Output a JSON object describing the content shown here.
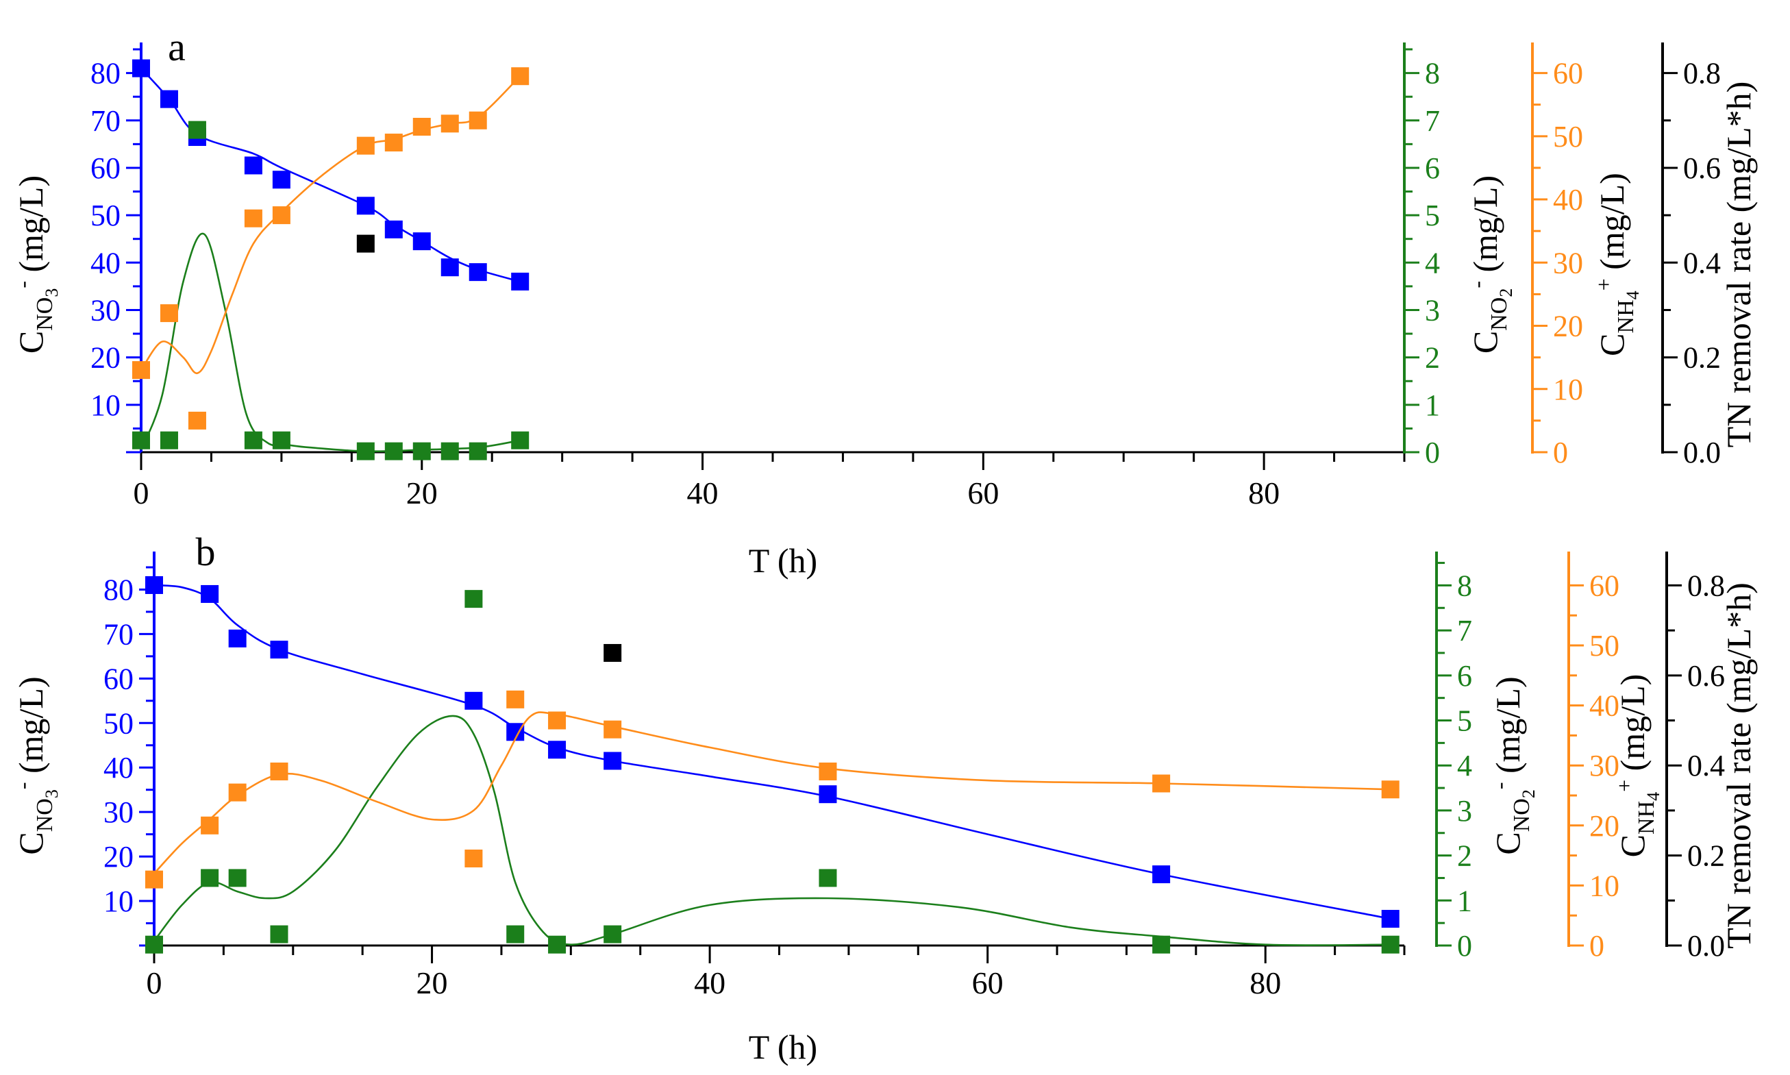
{
  "figure": {
    "colors": {
      "nitrate": "#0000FF",
      "nitrite": "#1B7F1B",
      "ammonium": "#FF8C1A",
      "tn_rate": "#000000"
    }
  },
  "chart_data": [
    {
      "type": "scatter",
      "panel_label": "a",
      "xlabel": "T (h)",
      "xlim": [
        0,
        90
      ],
      "x_ticks": [
        "0",
        "20",
        "40",
        "60",
        "80"
      ],
      "axes": {
        "nitrate": {
          "label": "C",
          "sub": "NO",
          "sub2": "3",
          "sup": "-",
          "unit": " (mg/L)",
          "ylim": [
            0,
            85
          ],
          "ticks": [
            "10",
            "20",
            "30",
            "40",
            "50",
            "60",
            "70",
            "80"
          ]
        },
        "nitrite": {
          "label": "C",
          "sub": "NO",
          "sub2": "2",
          "sup": "-",
          "unit": " (mg/L)",
          "ylim": [
            0,
            8.5
          ],
          "ticks": [
            "0",
            "1",
            "2",
            "3",
            "4",
            "5",
            "6",
            "7",
            "8"
          ]
        },
        "ammonium": {
          "label": "C",
          "sub": "NH",
          "sub2": "4",
          "sup": "+",
          "unit": " (mg/L)",
          "ylim": [
            0,
            63.75
          ],
          "ticks": [
            "0",
            "10",
            "20",
            "30",
            "40",
            "50",
            "60"
          ]
        },
        "tn_rate": {
          "label": "TN removal rate (mg/L*h)",
          "ylim": [
            0,
            0.85
          ],
          "ticks": [
            "0.0",
            "0.2",
            "0.4",
            "0.6",
            "0.8"
          ]
        }
      },
      "series": [
        {
          "name": "NO3-",
          "axis": "nitrate",
          "x": [
            0,
            2,
            4,
            8,
            10,
            16,
            18,
            20,
            22,
            24,
            27
          ],
          "y": [
            81,
            74.5,
            66.5,
            60.5,
            57.5,
            52,
            47,
            44.5,
            39,
            38,
            36
          ],
          "curve_x": [
            0,
            2,
            4,
            8,
            10,
            16,
            18,
            20,
            22,
            24,
            27
          ],
          "curve_y": [
            81,
            74.5,
            67,
            63,
            60,
            52,
            48,
            44.5,
            41,
            38.5,
            36
          ]
        },
        {
          "name": "NO2-",
          "axis": "nitrite",
          "x": [
            0,
            2,
            4,
            8,
            10,
            16,
            18,
            20,
            22,
            24,
            27
          ],
          "y": [
            0.25,
            0.25,
            6.8,
            0.25,
            0.25,
            0.02,
            0.02,
            0.02,
            0.02,
            0.02,
            0.25
          ],
          "curve_x": [
            0,
            1.5,
            3,
            4.5,
            6,
            7.5,
            9,
            10.5,
            12,
            16,
            20,
            24,
            27
          ],
          "curve_y": [
            0.05,
            1.2,
            3.6,
            4.6,
            3.0,
            0.8,
            0.2,
            0.15,
            0.1,
            0.02,
            0.05,
            0.1,
            0.25
          ]
        },
        {
          "name": "NH4+",
          "axis": "ammonium",
          "x": [
            0,
            2,
            4,
            8,
            10,
            16,
            18,
            20,
            22,
            24,
            27
          ],
          "y": [
            13,
            22,
            5,
            37,
            37.5,
            48.5,
            49,
            51.5,
            52,
            52.5,
            59.5
          ],
          "curve_x": [
            0,
            1.5,
            3,
            4,
            5,
            6.5,
            8,
            10,
            13,
            16,
            18,
            20,
            22,
            24,
            27
          ],
          "curve_y": [
            13,
            17.5,
            15,
            12.5,
            16,
            25,
            33,
            38,
            44,
            48.5,
            49.5,
            51,
            52,
            53,
            59.5
          ]
        },
        {
          "name": "TN removal rate",
          "axis": "tn_rate",
          "x": [
            16
          ],
          "y": [
            0.44
          ],
          "curve_x": [],
          "curve_y": []
        }
      ]
    },
    {
      "type": "scatter",
      "panel_label": "b",
      "xlabel": "T (h)",
      "xlim": [
        0,
        90
      ],
      "x_ticks": [
        "0",
        "20",
        "40",
        "60",
        "80"
      ],
      "axes": {
        "nitrate": {
          "label": "C",
          "sub": "NO",
          "sub2": "3",
          "sup": "-",
          "unit": " (mg/L)",
          "ylim": [
            0,
            87
          ],
          "ticks": [
            "10",
            "20",
            "30",
            "40",
            "50",
            "60",
            "70",
            "80"
          ]
        },
        "nitrite": {
          "label": "C",
          "sub": "NO",
          "sub2": "2",
          "sup": "-",
          "unit": " (mg/L)",
          "ylim": [
            0,
            8.6
          ],
          "ticks": [
            "0",
            "1",
            "2",
            "3",
            "4",
            "5",
            "6",
            "7",
            "8"
          ]
        },
        "ammonium": {
          "label": "C",
          "sub": "NH",
          "sub2": "4",
          "sup": "+",
          "unit": " (mg/L)",
          "ylim": [
            0,
            64.5
          ],
          "ticks": [
            "0",
            "10",
            "20",
            "30",
            "40",
            "50",
            "60"
          ]
        },
        "tn_rate": {
          "label": "TN removal rate (mg/L*h)",
          "ylim": [
            0,
            0.86
          ],
          "ticks": [
            "0.0",
            "0.2",
            "0.4",
            "0.6",
            "0.8"
          ]
        }
      },
      "series": [
        {
          "name": "NO3-",
          "axis": "nitrate",
          "x": [
            0,
            4,
            6,
            9,
            23,
            26,
            29,
            33,
            48.5,
            72.5,
            89
          ],
          "y": [
            81,
            79,
            69,
            66.5,
            55,
            48,
            44,
            41.5,
            34,
            16,
            6
          ],
          "curve_x": [
            0,
            2,
            4,
            6,
            9,
            15,
            23,
            26,
            29,
            33,
            40,
            48.5,
            60,
            72.5,
            89
          ],
          "curve_y": [
            81,
            80.5,
            78,
            72,
            66.5,
            61,
            54,
            49,
            44.5,
            41.5,
            38,
            33.5,
            25,
            16,
            6
          ]
        },
        {
          "name": "NO2-",
          "axis": "nitrite",
          "x": [
            0,
            4,
            6,
            9,
            23,
            26,
            29,
            33,
            48.5,
            72.5,
            89
          ],
          "y": [
            0.02,
            1.5,
            1.5,
            0.25,
            7.7,
            0.25,
            0.02,
            0.25,
            1.5,
            0.02,
            0.02
          ],
          "curve_x": [
            0,
            2,
            4,
            6,
            8,
            10,
            13,
            16,
            19,
            21.5,
            23,
            24.5,
            26,
            28,
            30,
            33,
            40,
            48.5,
            58,
            66,
            72.5,
            80,
            89
          ],
          "curve_y": [
            0.1,
            0.9,
            1.4,
            1.2,
            1.05,
            1.2,
            2.1,
            3.5,
            4.7,
            5.1,
            4.7,
            3.4,
            1.4,
            0.3,
            0.02,
            0.25,
            0.9,
            1.05,
            0.85,
            0.4,
            0.2,
            0.02,
            0.02
          ]
        },
        {
          "name": "NH4+",
          "axis": "ammonium",
          "x": [
            0,
            4,
            6,
            9,
            23,
            26,
            29,
            33,
            48.5,
            72.5,
            89
          ],
          "y": [
            11,
            20,
            25.5,
            29,
            14.5,
            41,
            37.5,
            36,
            29,
            27,
            26
          ],
          "curve_x": [
            0,
            2,
            4,
            6,
            9,
            12,
            16,
            20,
            23,
            25,
            27,
            29,
            33,
            40,
            48.5,
            60,
            72.5,
            89
          ],
          "curve_y": [
            12,
            17,
            21,
            25,
            28.5,
            27.5,
            24,
            21,
            22.5,
            30,
            38,
            38.5,
            36.5,
            33,
            29.5,
            27.5,
            27,
            26
          ]
        },
        {
          "name": "TN removal rate",
          "axis": "tn_rate",
          "x": [
            33
          ],
          "y": [
            0.65
          ],
          "curve_x": [],
          "curve_y": []
        }
      ]
    }
  ]
}
